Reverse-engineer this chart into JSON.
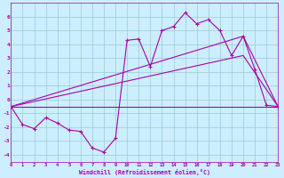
{
  "xlabel": "Windchill (Refroidissement éolien,°C)",
  "bg_color": "#cceeff",
  "grid_color": "#99cccc",
  "line_color": "#aa00aa",
  "xlim": [
    0,
    23
  ],
  "ylim": [
    -4.5,
    7.0
  ],
  "xticks": [
    0,
    1,
    2,
    3,
    4,
    5,
    6,
    7,
    8,
    9,
    10,
    11,
    12,
    13,
    14,
    15,
    16,
    17,
    18,
    19,
    20,
    21,
    22,
    23
  ],
  "yticks": [
    -4,
    -3,
    -2,
    -1,
    0,
    1,
    2,
    3,
    4,
    5,
    6
  ],
  "series": {
    "line1_x": [
      0,
      1,
      2,
      3,
      4,
      5,
      6,
      7,
      8,
      9,
      10,
      11,
      12,
      13,
      14,
      15,
      16,
      17,
      18,
      19,
      20,
      21,
      22,
      23
    ],
    "line1_y": [
      -0.5,
      -1.8,
      -2.1,
      -1.3,
      -1.7,
      -2.2,
      -2.3,
      -3.5,
      -3.8,
      -2.8,
      4.3,
      4.4,
      2.4,
      5.0,
      5.3,
      6.3,
      5.5,
      5.8,
      5.0,
      3.2,
      4.6,
      2.2,
      -0.4,
      -0.5
    ],
    "line2_x": [
      0,
      23
    ],
    "line2_y": [
      -0.5,
      -0.5
    ],
    "line3_x": [
      0,
      20,
      23
    ],
    "line3_y": [
      -0.5,
      3.2,
      -0.5
    ],
    "line4_x": [
      0,
      20,
      23
    ],
    "line4_y": [
      -0.5,
      4.6,
      -0.5
    ]
  }
}
